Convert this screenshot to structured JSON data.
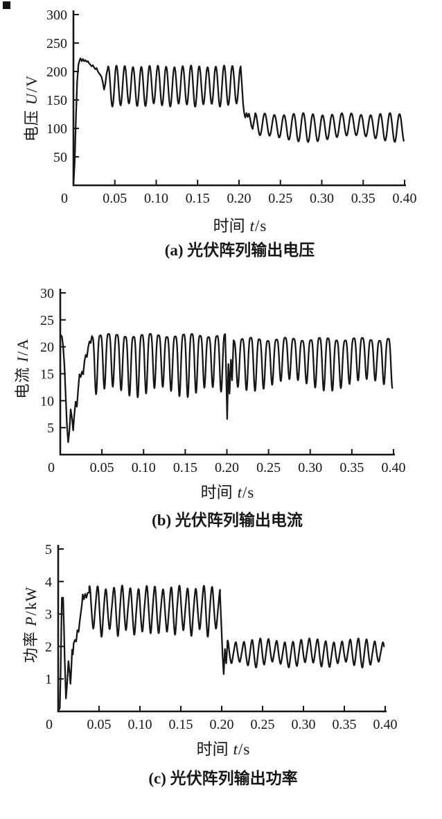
{
  "page": {
    "background": "#ffffff",
    "ink": "#161616",
    "scan_mark_color": "#141414"
  },
  "chart_data": [
    {
      "id": "a",
      "type": "line",
      "caption": "(a) 光伏阵列输出电压",
      "xlabel": {
        "cjk": "时间",
        "var": "t",
        "slash": "/",
        "unit": "s"
      },
      "ylabel": {
        "cjk": "电压",
        "var": "U",
        "slash": "/",
        "unit": "V"
      },
      "xlim": [
        0,
        0.4
      ],
      "ylim": [
        0,
        300
      ],
      "xticks": {
        "values": [
          0.05,
          0.1,
          0.15,
          0.2,
          0.25,
          0.3,
          0.35,
          0.4
        ],
        "labels": [
          "0.05",
          "0.10",
          "0.15",
          "0.20",
          "0.25",
          "0.30",
          "0.35",
          "0.40"
        ]
      },
      "yticks": {
        "values": [
          50,
          100,
          150,
          200,
          250,
          300
        ],
        "labels": [
          "50",
          "100",
          "150",
          "200",
          "250",
          "300"
        ]
      },
      "origin_label": "0",
      "grid": false,
      "legend": null,
      "stroke": "#161616",
      "series": [
        {
          "name": "光伏阵列输出电压",
          "segments": [
            {
              "kind": "path",
              "points": [
                [
                  0,
                  0
                ],
                [
                  0.0015,
                  40
                ],
                [
                  0.003,
                  118
                ],
                [
                  0.0045,
                  183
                ],
                [
                  0.006,
                  212
                ],
                [
                  0.0075,
                  220
                ],
                [
                  0.0085,
                  223
                ],
                [
                  0.01,
                  218
                ],
                [
                  0.0115,
                  222
                ],
                [
                  0.013,
                  218
                ],
                [
                  0.0145,
                  220
                ],
                [
                  0.016,
                  217
                ],
                [
                  0.0175,
                  218
                ],
                [
                  0.019,
                  214
                ],
                [
                  0.0205,
                  212
                ],
                [
                  0.022,
                  209
                ],
                [
                  0.0235,
                  211
                ],
                [
                  0.025,
                  207
                ],
                [
                  0.0265,
                  204
                ],
                [
                  0.028,
                  206
                ],
                [
                  0.0295,
                  200
                ],
                [
                  0.031,
                  197
                ],
                [
                  0.0325,
                  194
                ],
                [
                  0.034,
                  190
                ],
                [
                  0.0355,
                  181
                ],
                [
                  0.037,
                  168
                ],
                [
                  0.0385,
                  178
                ],
                [
                  0.04,
                  196
                ],
                [
                  0.042,
                  209
                ]
              ]
            },
            {
              "kind": "osc",
              "t0": 0.042,
              "t1": 0.202,
              "freq": 100,
              "max": 209,
              "min": 141,
              "shape_exp": 1.05,
              "wobble_max": [
                1.5,
                23
              ],
              "wobble_min": [
                3,
                31
              ],
              "harm": 0
            },
            {
              "kind": "path",
              "points": [
                [
                  0.202,
                  209
                ],
                [
                  0.2035,
                  176
                ],
                [
                  0.205,
                  142
                ],
                [
                  0.2062,
                  127
                ],
                [
                  0.2075,
                  119
                ],
                [
                  0.209,
                  127
                ],
                [
                  0.2105,
                  120
                ],
                [
                  0.212,
                  126
                ],
                [
                  0.2135,
                  117
                ],
                [
                  0.215,
                  104
                ],
                [
                  0.2165,
                  99
                ],
                [
                  0.218,
                  112
                ],
                [
                  0.2195,
                  125
                ]
              ]
            },
            {
              "kind": "osc",
              "t0": 0.2195,
              "t1": 0.399,
              "freq": 86,
              "max": 125,
              "min": 82,
              "shape_exp": 1.05,
              "wobble_max": [
                2,
                19
              ],
              "wobble_min": [
                6,
                9
              ],
              "harm": 0
            }
          ]
        }
      ]
    },
    {
      "id": "b",
      "type": "line",
      "caption": "(b) 光伏阵列输出电流",
      "xlabel": {
        "cjk": "时间",
        "var": "t",
        "slash": "/",
        "unit": "s"
      },
      "ylabel": {
        "cjk": "电流",
        "var": "I",
        "slash": "/",
        "unit": "A"
      },
      "xlim": [
        0,
        0.4
      ],
      "ylim": [
        0,
        30
      ],
      "xticks": {
        "values": [
          0.05,
          0.1,
          0.15,
          0.2,
          0.25,
          0.3,
          0.35,
          0.4
        ],
        "labels": [
          "0.05",
          "0.10",
          "0.15",
          "0.20",
          "0.25",
          "0.30",
          "0.35",
          "0.40"
        ]
      },
      "yticks": {
        "values": [
          5,
          10,
          15,
          20,
          25,
          30
        ],
        "labels": [
          "5",
          "10",
          "15",
          "20",
          "25",
          "30"
        ]
      },
      "origin_label": "0",
      "grid": false,
      "legend": null,
      "stroke": "#161616",
      "series": [
        {
          "name": "光伏阵列输出电流",
          "segments": [
            {
              "kind": "path",
              "points": [
                [
                  0,
                  22.3
                ],
                [
                  0.002,
                  21.9
                ],
                [
                  0.0035,
                  20
                ],
                [
                  0.005,
                  16.5
                ],
                [
                  0.0065,
                  11
                ],
                [
                  0.008,
                  5.5
                ],
                [
                  0.0095,
                  2.3
                ],
                [
                  0.011,
                  4.4
                ],
                [
                  0.0125,
                  8.4
                ],
                [
                  0.014,
                  6.9
                ],
                [
                  0.0155,
                  4.5
                ],
                [
                  0.017,
                  7.6
                ],
                [
                  0.0185,
                  9.8
                ],
                [
                  0.02,
                  8.9
                ],
                [
                  0.0215,
                  12.2
                ],
                [
                  0.023,
                  14.9
                ],
                [
                  0.0245,
                  14.4
                ],
                [
                  0.026,
                  15.4
                ],
                [
                  0.0275,
                  14.9
                ],
                [
                  0.029,
                  17.3
                ],
                [
                  0.0305,
                  18.5
                ],
                [
                  0.032,
                  18.1
                ],
                [
                  0.0335,
                  19.9
                ],
                [
                  0.035,
                  21
                ],
                [
                  0.0365,
                  20.7
                ],
                [
                  0.038,
                  22
                ]
              ]
            },
            {
              "kind": "osc",
              "t0": 0.038,
              "t1": 0.198,
              "freq": 100,
              "max": 22.1,
              "min": 11.6,
              "shape_exp": 1.9,
              "wobble_max": [
                0.3,
                21
              ],
              "wobble_min": [
                1.0,
                17
              ],
              "harm": 0
            },
            {
              "kind": "path",
              "points": [
                [
                  0.198,
                  22
                ],
                [
                  0.1992,
                  15
                ],
                [
                  0.2003,
                  6.6
                ],
                [
                  0.2018,
                  16.8
                ],
                [
                  0.2032,
                  11.3
                ],
                [
                  0.2048,
                  17.6
                ],
                [
                  0.2062,
                  13.8
                ],
                [
                  0.208,
                  21.2
                ]
              ]
            },
            {
              "kind": "osc",
              "t0": 0.208,
              "t1": 0.3985,
              "freq": 97,
              "max": 21.4,
              "min": 12.9,
              "shape_exp": 1.8,
              "wobble_max": [
                0.3,
                23
              ],
              "wobble_min": [
                1.1,
                11
              ],
              "harm": 0
            }
          ]
        }
      ]
    },
    {
      "id": "c",
      "type": "line",
      "caption": "(c) 光伏阵列输出功率",
      "xlabel": {
        "cjk": "时间",
        "var": "t",
        "slash": "/",
        "unit": "s"
      },
      "ylabel": {
        "cjk": "功率",
        "var": "P",
        "slash": "/",
        "unit": "kW"
      },
      "xlim": [
        0,
        0.4
      ],
      "ylim": [
        0,
        5
      ],
      "xticks": {
        "values": [
          0.05,
          0.1,
          0.15,
          0.2,
          0.25,
          0.3,
          0.35,
          0.4
        ],
        "labels": [
          "0.05",
          "0.10",
          "0.15",
          "0.20",
          "0.25",
          "0.30",
          "0.35",
          "0.40"
        ]
      },
      "yticks": {
        "values": [
          1,
          2,
          3,
          4,
          5
        ],
        "labels": [
          "1",
          "2",
          "3",
          "4",
          "5"
        ]
      },
      "origin_label": "0",
      "grid": false,
      "legend": null,
      "stroke": "#161616",
      "series": [
        {
          "name": "光伏阵列输出功率",
          "segments": [
            {
              "kind": "path",
              "points": [
                [
                  0,
                  0.02
                ],
                [
                  0.002,
                  0.1
                ],
                [
                  0.003,
                  1.2
                ],
                [
                  0.004,
                  2.8
                ],
                [
                  0.0045,
                  3.5
                ],
                [
                  0.0055,
                  3.3
                ],
                [
                  0.006,
                  3.5
                ],
                [
                  0.007,
                  2.6
                ],
                [
                  0.008,
                  1.6
                ],
                [
                  0.0095,
                  0.4
                ],
                [
                  0.011,
                  0.9
                ],
                [
                  0.0125,
                  1.55
                ],
                [
                  0.014,
                  1.2
                ],
                [
                  0.015,
                  0.85
                ],
                [
                  0.016,
                  1.3
                ],
                [
                  0.017,
                  1.9
                ],
                [
                  0.018,
                  1.75
                ],
                [
                  0.019,
                  2.1
                ],
                [
                  0.0205,
                  2.2
                ],
                [
                  0.022,
                  2.15
                ],
                [
                  0.0235,
                  2.5
                ],
                [
                  0.025,
                  2.45
                ],
                [
                  0.026,
                  2.7
                ],
                [
                  0.0275,
                  3.0
                ],
                [
                  0.029,
                  3.28
                ],
                [
                  0.03,
                  3.6
                ],
                [
                  0.0315,
                  3.45
                ],
                [
                  0.033,
                  3.62
                ],
                [
                  0.0345,
                  3.5
                ],
                [
                  0.036,
                  3.65
                ],
                [
                  0.038,
                  3.66
                ]
              ]
            },
            {
              "kind": "osc",
              "t0": 0.038,
              "t1": 0.198,
              "freq": 100,
              "max": 3.68,
              "min": 2.42,
              "shape_exp": 1.5,
              "wobble_max": [
                0.06,
                29
              ],
              "wobble_min": [
                0.13,
                47
              ],
              "harm": 0.14
            },
            {
              "kind": "path",
              "points": [
                [
                  0.198,
                  3.62
                ],
                [
                  0.1995,
                  2.7
                ],
                [
                  0.201,
                  1.75
                ],
                [
                  0.2025,
                  1.15
                ],
                [
                  0.204,
                  1.92
                ],
                [
                  0.2055,
                  1.48
                ],
                [
                  0.207,
                  2.1
                ]
              ]
            },
            {
              "kind": "osc",
              "t0": 0.207,
              "t1": 0.3985,
              "freq": 100,
              "max": 2.12,
              "min": 1.44,
              "shape_exp": 1.3,
              "wobble_max": [
                0.06,
                17
              ],
              "wobble_min": [
                0.09,
                23
              ],
              "harm": 0.07
            }
          ]
        }
      ]
    }
  ]
}
